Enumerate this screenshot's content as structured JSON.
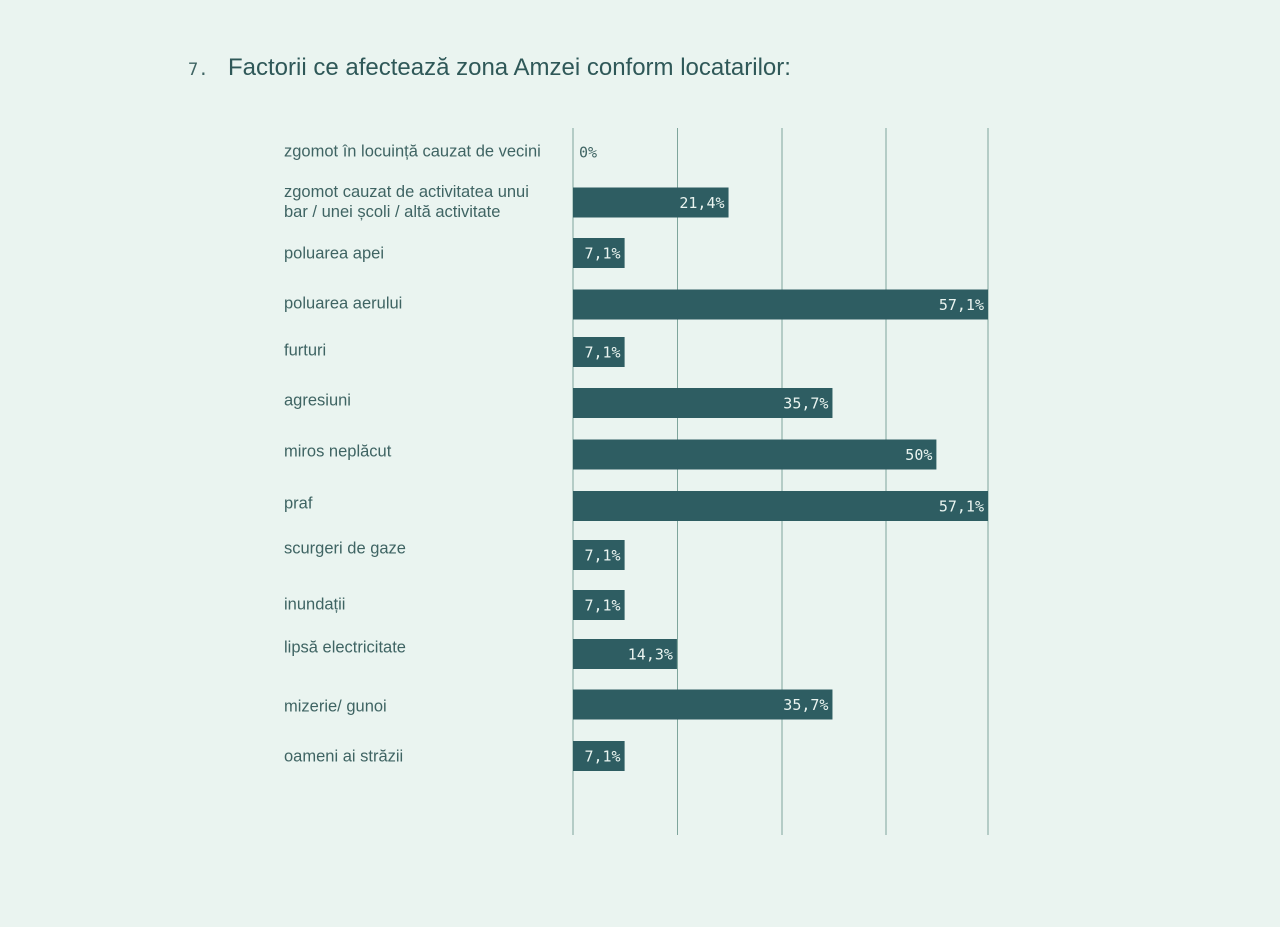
{
  "question": {
    "number": "7.",
    "title": "Factorii ce afectează zona Amzei conform locatarilor:"
  },
  "colors": {
    "background": "#eaf4f0",
    "bar": "#2e5d62",
    "grid": "#7fa59c",
    "label": "#3f6463"
  },
  "chart_data": {
    "type": "bar",
    "orientation": "horizontal",
    "title": "Factorii ce afectează zona Amzei conform locatarilor:",
    "xlim": [
      0,
      57.1
    ],
    "grid": true,
    "categories": [
      [
        "zgomot în locuință cauzat de vecini"
      ],
      [
        "zgomot cauzat de activitatea unui",
        "bar / unei școli / altă activitate"
      ],
      [
        "poluarea apei"
      ],
      [
        "poluarea aerului"
      ],
      [
        "furturi"
      ],
      [
        "agresiuni"
      ],
      [
        "miros neplăcut"
      ],
      [
        "praf"
      ],
      [
        "scurgeri de gaze"
      ],
      [
        "inundații"
      ],
      [
        "lipsă electricitate"
      ],
      [
        "mizerie/ gunoi"
      ],
      [
        "oameni ai străzii"
      ]
    ],
    "values": [
      0,
      21.4,
      7.1,
      57.1,
      7.1,
      35.7,
      50,
      57.1,
      7.1,
      7.1,
      14.3,
      35.7,
      7.1
    ],
    "value_labels": [
      "0%",
      "21,4%",
      "7,1%",
      "57,1%",
      "7,1%",
      "35,7%",
      "50%",
      "57,1%",
      "7,1%",
      "7,1%",
      "14,3%",
      "35,7%",
      "7,1%"
    ]
  }
}
